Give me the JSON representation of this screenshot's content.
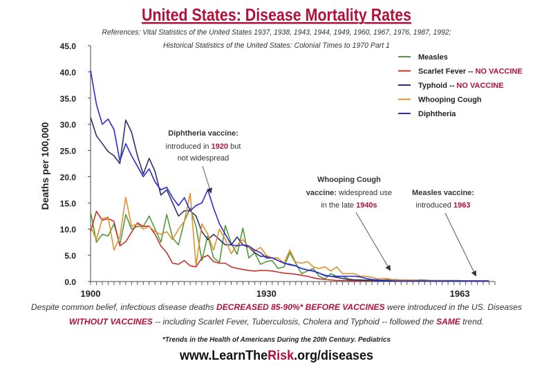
{
  "colors": {
    "accent": "#b0103a",
    "text": "#222222"
  },
  "header": {
    "title": "United States: Disease Mortality Rates",
    "references_line1": "References: Vital Statistics of the United States 1937, 1938, 1943, 1944, 1949, 1960, 1967, 1976, 1987, 1992;",
    "references_line2": "Historical Statistics of the United States: Colonial Times to 1970 Part 1"
  },
  "annotations": {
    "diphtheria": {
      "l1": "Diphtheria vaccine:",
      "l2a": "introduced in ",
      "l2b": "1920",
      "l2c": " but",
      "l3": "not widespread"
    },
    "whooping": {
      "l1": "Whooping Cough",
      "l2a": "vaccine:",
      "l2b": " widespread use",
      "l3a": "in the late ",
      "l3b": "1940s"
    },
    "measles": {
      "l1": "Measles vaccine:",
      "l2a": "introduced ",
      "l2b": "1963"
    }
  },
  "footer": {
    "p1a": "Despite common belief, infectious disease deaths ",
    "p1b": "DECREASED 85-90%* BEFORE VACCINES",
    "p1c": " were introduced in the US. Diseases",
    "p2a": "WITHOUT VACCINES",
    "p2b": " -- including Scarlet Fever, Tuberculosis, Cholera and Typhoid -- followed the ",
    "p2c": "SAME",
    "p2d": " trend.",
    "note": "*Trends in the Health of Americans During the 20th Century. Pediatrics",
    "url_a": "www.LearnThe",
    "url_b": "Risk",
    "url_c": ".org/diseases"
  },
  "chart_data": {
    "type": "line",
    "title": "United States: Disease Mortality Rates",
    "xlabel": "",
    "ylabel": "Deaths per 100,000",
    "xlim": [
      1900,
      1969
    ],
    "ylim": [
      0,
      45
    ],
    "yticks": [
      "0.0",
      "5.0",
      "10.0",
      "15.0",
      "20.0",
      "25.0",
      "30.0",
      "35.0",
      "40.0",
      "45.0"
    ],
    "xtick_labels": [
      "1900",
      "1930",
      "1963"
    ],
    "xtick_values": [
      1900,
      1930,
      1963
    ],
    "x_start": 1900,
    "grid": false,
    "legend_position": "top-right",
    "series": [
      {
        "name": "Measles",
        "suffix": "",
        "color": "#4e9a3a",
        "values": [
          13.3,
          7.5,
          9,
          8.7,
          11,
          7,
          12.8,
          10,
          10.5,
          10.5,
          12.5,
          10,
          7.5,
          12.8,
          8.3,
          7,
          11.5,
          14,
          10.5,
          4,
          8.8,
          4.5,
          3.7,
          10.7,
          7.3,
          5.2,
          10.2,
          4.5,
          5.5,
          3.3,
          3.8,
          4,
          2.5,
          2.8,
          5.5,
          3.5,
          1.5,
          2,
          2.5,
          1,
          0.5,
          1.5,
          1,
          1,
          0.5,
          0.3,
          0.3,
          0.3,
          0.3,
          0.2,
          0.3,
          0.4,
          0.4,
          0.3,
          0.3,
          0.2,
          0.3,
          0.3,
          0.2,
          0.2,
          0.2,
          0.2,
          0.2,
          0.2,
          0.1,
          0.1,
          0.1,
          0.1,
          0.1
        ]
      },
      {
        "name": "Scarlet Fever",
        "suffix": "NO VACCINE",
        "color": "#c8302c",
        "values": [
          9.5,
          13.4,
          11.7,
          12,
          11.5,
          6.8,
          7.6,
          9.4,
          11.2,
          10.5,
          10.6,
          9,
          6.8,
          5.5,
          3.5,
          3.3,
          4,
          3,
          2.8,
          4.5,
          5,
          3.8,
          3.5,
          3.5,
          2.8,
          2.5,
          2.3,
          2.1,
          2,
          2.1,
          2.1,
          2,
          1.8,
          1.6,
          1.5,
          1.4,
          1.2,
          1,
          0.7,
          0.5,
          0.4,
          0.3,
          0.2,
          0.2,
          0.2,
          0.1,
          0.1,
          0.1,
          0.1,
          0.1,
          0.1,
          0.1,
          0.1,
          0.1,
          0.1,
          0.1,
          0.1,
          0.1,
          0.1,
          0.1,
          0.1,
          0.1,
          0.1,
          0.1,
          0.1,
          0.1,
          0.1,
          0.1,
          0.1
        ]
      },
      {
        "name": "Typhoid",
        "suffix": "NO VACCINE",
        "color": "#2e2e6e",
        "values": [
          31.3,
          27.8,
          26.3,
          24.8,
          24,
          22.5,
          30.8,
          28.5,
          24,
          20.5,
          23.5,
          21,
          16.5,
          17.5,
          15,
          12.5,
          13.5,
          13.5,
          12.5,
          9.5,
          8,
          9,
          8,
          7,
          7,
          8.5,
          7,
          6.5,
          5.5,
          4.8,
          4.8,
          4.5,
          4,
          3.5,
          3.2,
          3,
          2.5,
          2.2,
          2,
          1.6,
          1.1,
          1,
          0.8,
          0.6,
          0.4,
          0.3,
          0.3,
          0.2,
          0.2,
          0.1,
          0.1,
          0.1,
          0.1,
          0.1,
          0.1,
          0.1,
          0.1,
          0.1,
          0.1,
          0.1,
          0.1,
          0.1,
          0.1,
          0.1,
          0.1,
          0.1,
          0.1,
          0.1,
          0.1
        ]
      },
      {
        "name": "Whooping Cough",
        "suffix": "",
        "color": "#e0902c",
        "values": [
          10.5,
          8,
          12,
          12.3,
          6,
          8.5,
          16.1,
          10.5,
          11,
          10,
          10.5,
          9.5,
          9,
          9.5,
          8,
          10,
          11.5,
          16.8,
          3,
          11,
          9,
          6,
          10,
          8,
          5.3,
          7,
          8,
          6.5,
          5.8,
          6.5,
          5,
          4.5,
          4.5,
          3.5,
          6,
          3.7,
          3.5,
          3.8,
          2.8,
          2.5,
          2.8,
          2,
          2.8,
          1.5,
          1.5,
          1.5,
          1,
          1,
          0.8,
          0.5,
          0.6,
          0.5,
          0.3,
          0.3,
          0.3,
          0.3,
          0.2,
          0.2,
          0.2,
          0.2,
          0.2,
          0.1,
          0.1,
          0.1,
          0.1,
          0.1,
          0.1,
          0.1,
          0.1
        ]
      },
      {
        "name": "Diphtheria",
        "suffix": "",
        "color": "#2a2ad0",
        "values": [
          40.3,
          33.8,
          30,
          31,
          29,
          23,
          26.3,
          24,
          22,
          20,
          21.5,
          19,
          17.5,
          18,
          16,
          14.5,
          16,
          13.5,
          14.5,
          15,
          17.5,
          14,
          11,
          9,
          7,
          6.8,
          7,
          6.8,
          6,
          5.5,
          4.5,
          4.5,
          4,
          3.5,
          3.3,
          3,
          2.5,
          2.2,
          2,
          1.6,
          1.2,
          1,
          1,
          1,
          1,
          1,
          0.9,
          0.6,
          0.4,
          0.3,
          0.2,
          0.2,
          0.1,
          0.1,
          0.1,
          0.1,
          0.1,
          0.1,
          0.1,
          0.1,
          0.1,
          0.1,
          0.1,
          0.1,
          0.1,
          0.1,
          0.1,
          0.1,
          0.1
        ]
      }
    ]
  }
}
